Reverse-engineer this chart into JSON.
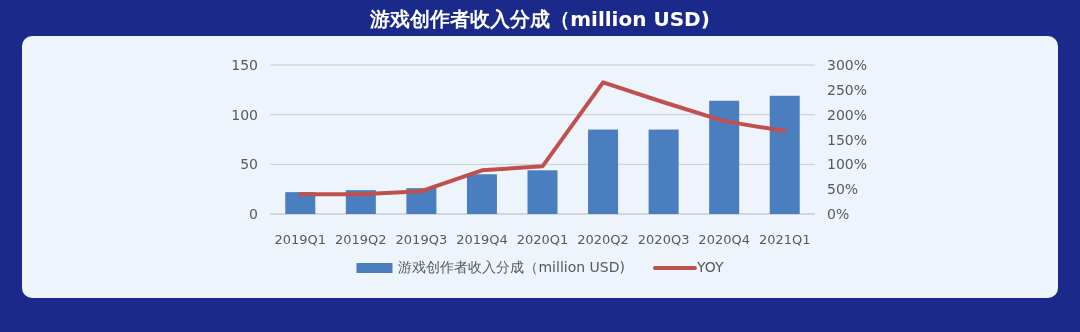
{
  "chart_data": {
    "type": "bar",
    "title": "游戏创作者收入分成（million USD)",
    "categories": [
      "2019Q1",
      "2019Q2",
      "2019Q3",
      "2019Q4",
      "2020Q1",
      "2020Q2",
      "2020Q3",
      "2020Q4",
      "2021Q1"
    ],
    "series": [
      {
        "name": "游戏创作者收入分成（million USD)",
        "color": "#4a7ebf",
        "values": [
          22,
          24,
          26,
          40,
          44,
          85,
          85,
          114,
          119
        ]
      },
      {
        "name": "YOY",
        "type": "line",
        "axis": "y2",
        "color": "#c0504d",
        "values": [
          40,
          40,
          46,
          88,
          96,
          265,
          225,
          187,
          167
        ]
      }
    ],
    "ylim": [
      0,
      150
    ],
    "yticks": [
      0,
      50,
      100,
      150
    ],
    "y2lim": [
      0,
      300
    ],
    "y2ticks": [
      {
        "value": 0,
        "label": "0%"
      },
      {
        "value": 50,
        "label": "50%"
      },
      {
        "value": 100,
        "label": "100%"
      },
      {
        "value": 150,
        "label": "150%"
      },
      {
        "value": 200,
        "label": "200%"
      },
      {
        "value": 250,
        "label": "250%"
      },
      {
        "value": 300,
        "label": "300%"
      }
    ],
    "grid": "y",
    "legend": "bottom",
    "marker": "none"
  }
}
